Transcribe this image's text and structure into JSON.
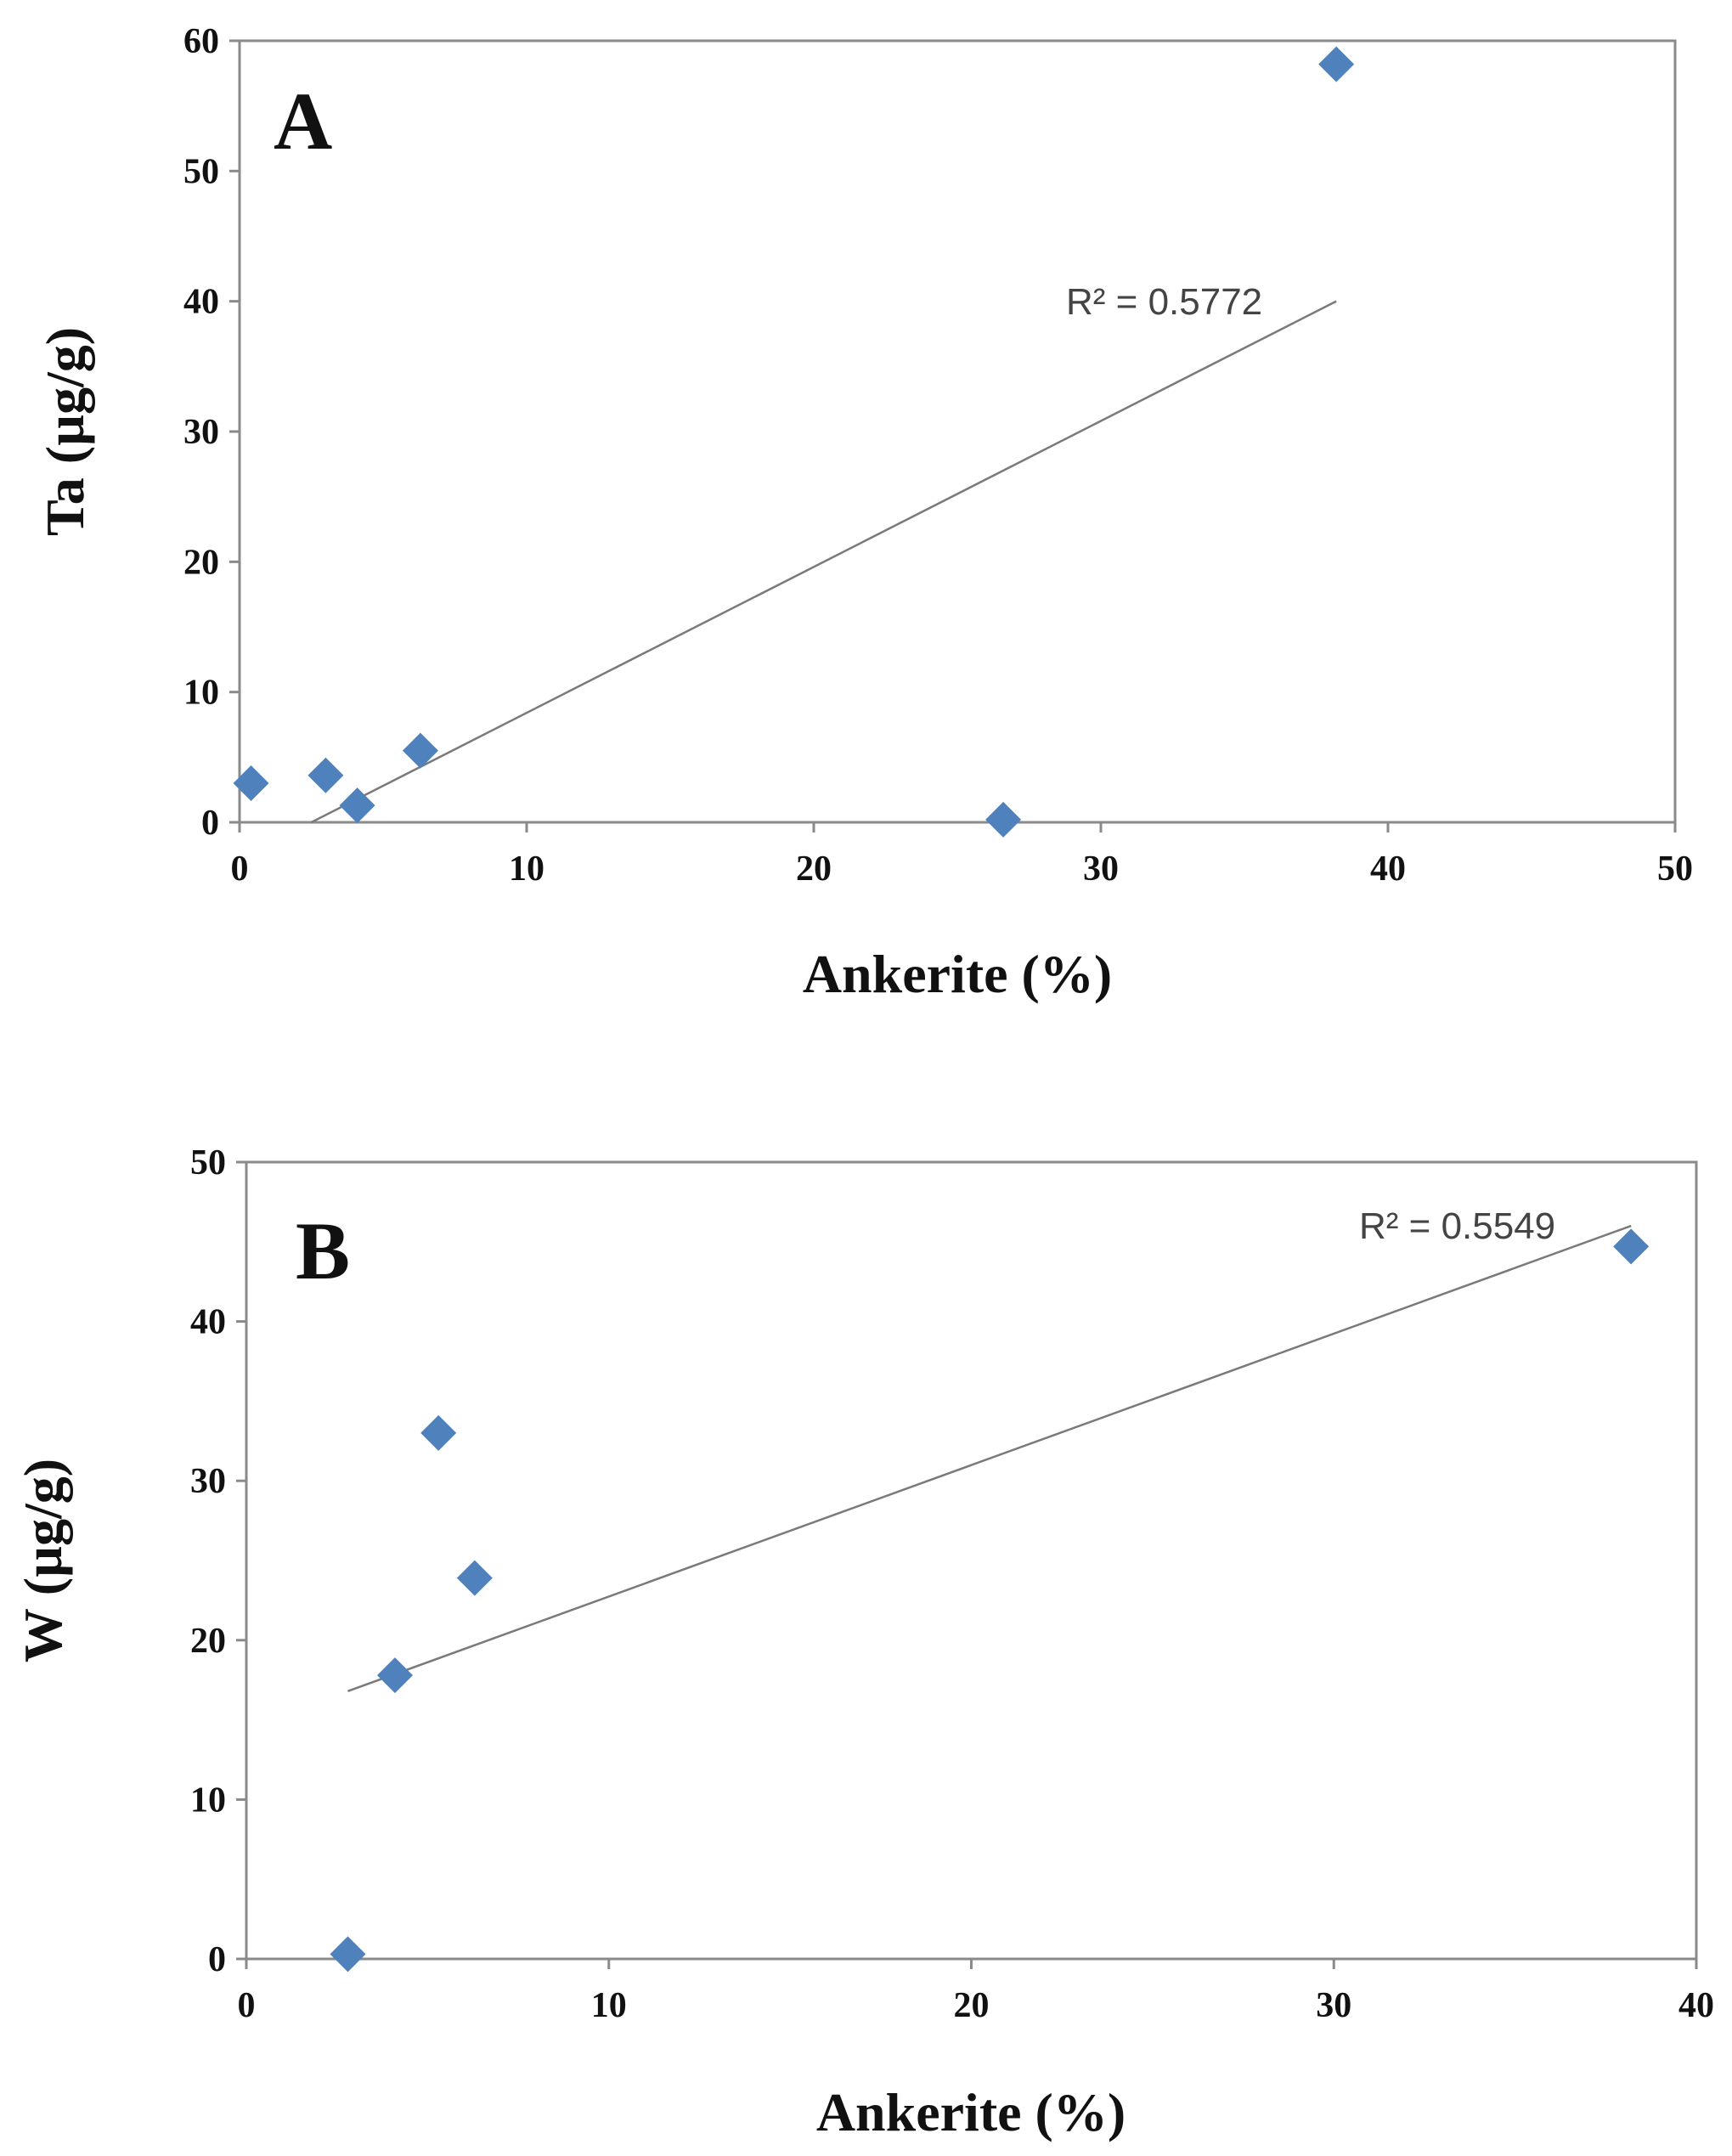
{
  "chart_data": [
    {
      "type": "scatter",
      "panel_label": "A",
      "xlabel": "Ankerite (%)",
      "ylabel": "Ta (µg/g)",
      "xlim": [
        0,
        50
      ],
      "ylim": [
        0,
        60
      ],
      "xticks": [
        0,
        10,
        20,
        30,
        40,
        50
      ],
      "yticks": [
        0,
        10,
        20,
        30,
        40,
        50,
        60
      ],
      "grid": false,
      "marker_color": "#4f81bd",
      "series": [
        {
          "name": "Ta",
          "x": [
            0.4,
            3.0,
            4.1,
            6.3,
            26.6,
            38.2
          ],
          "y": [
            3.0,
            3.6,
            1.3,
            5.5,
            0.2,
            58.2
          ]
        }
      ],
      "trendline": {
        "type": "linear",
        "x": [
          2.5,
          38.2
        ],
        "y": [
          0.0,
          40.0
        ],
        "r2_label": "R² = 0.5772"
      }
    },
    {
      "type": "scatter",
      "panel_label": "B",
      "xlabel": "Ankerite (%)",
      "ylabel": "W (µg/g)",
      "xlim": [
        0,
        40
      ],
      "ylim": [
        0,
        50
      ],
      "xticks": [
        0,
        10,
        20,
        30,
        40
      ],
      "yticks": [
        0,
        10,
        20,
        30,
        40,
        50
      ],
      "grid": false,
      "marker_color": "#4f81bd",
      "series": [
        {
          "name": "W",
          "x": [
            2.8,
            4.1,
            5.3,
            6.3,
            38.2
          ],
          "y": [
            0.3,
            17.8,
            33.0,
            23.9,
            44.7
          ]
        }
      ],
      "trendline": {
        "type": "linear",
        "x": [
          2.8,
          38.2
        ],
        "y": [
          16.8,
          46.0
        ],
        "r2_label": "R² = 0.5549"
      }
    }
  ]
}
